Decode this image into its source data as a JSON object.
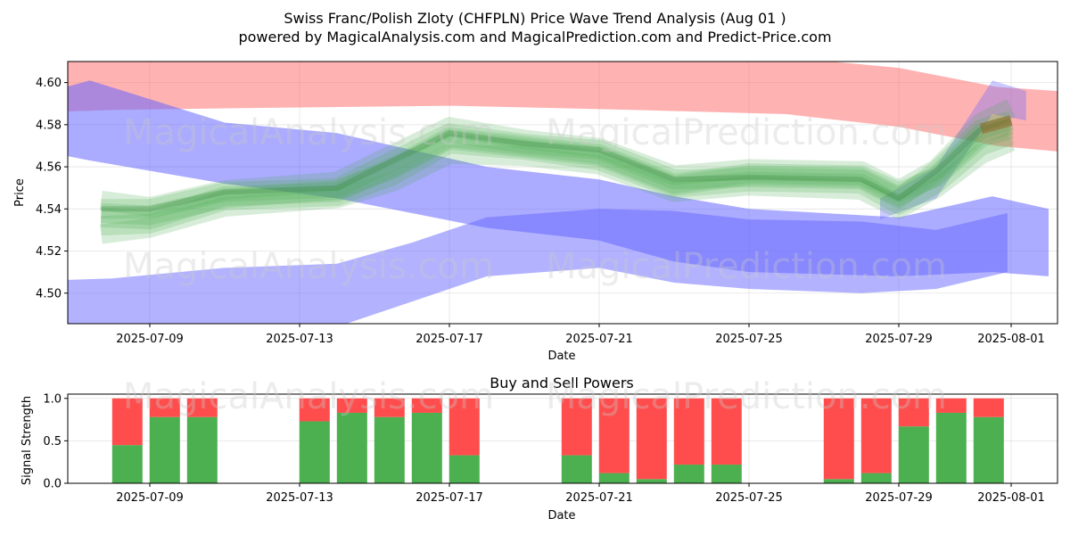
{
  "chart_data": [
    {
      "type": "area",
      "title": "Swiss Franc/Polish Zloty (CHFPLN) Price Wave Trend Analysis (Aug 01 )",
      "subtitle": "powered by MagicalAnalysis.com and MagicalPrediction.com and Predict-Price.com",
      "xlabel": "Date",
      "ylabel": "Price",
      "x_ticks": [
        "2025-07-09",
        "2025-07-13",
        "2025-07-17",
        "2025-07-21",
        "2025-07-25",
        "2025-07-29",
        "2025-08-01"
      ],
      "y_ticks": [
        "4.50",
        "4.52",
        "4.54",
        "4.56",
        "4.58",
        "4.60"
      ],
      "ylim": [
        4.4855,
        4.61
      ],
      "watermarks": [
        "MagicalAnalysis.com",
        "MagicalPrediction.com"
      ],
      "bands": [
        {
          "name": "red-upper-band",
          "color": "#ff6666",
          "opacity": 0.5,
          "upper": [
            [
              -4.5,
              4.618
            ],
            [
              -1,
              4.612
            ],
            [
              3,
              4.613
            ],
            [
              8,
              4.613
            ],
            [
              13,
              4.612
            ],
            [
              17,
              4.612
            ],
            [
              20,
              4.607
            ],
            [
              22.6,
              4.598
            ],
            [
              25,
              4.595
            ]
          ],
          "lower": [
            [
              -4.5,
              4.585
            ],
            [
              -1,
              4.587
            ],
            [
              3,
              4.588
            ],
            [
              8,
              4.589
            ],
            [
              13,
              4.587
            ],
            [
              17,
              4.585
            ],
            [
              20,
              4.579
            ],
            [
              22.6,
              4.57
            ],
            [
              25,
              4.566
            ]
          ]
        },
        {
          "name": "blue-falling-band",
          "color": "#6666ff",
          "opacity": 0.55,
          "upper": [
            [
              -4.5,
              4.587
            ],
            [
              -1.6,
              4.601
            ],
            [
              2,
              4.581
            ],
            [
              5,
              4.576
            ],
            [
              9,
              4.56
            ],
            [
              12,
              4.554
            ],
            [
              14,
              4.546
            ],
            [
              16,
              4.54
            ],
            [
              20,
              4.536
            ],
            [
              22.5,
              4.546
            ],
            [
              24,
              4.54
            ]
          ],
          "lower": [
            [
              -4.5,
              4.573
            ],
            [
              -1.6,
              4.563
            ],
            [
              2,
              4.552
            ],
            [
              5,
              4.545
            ],
            [
              9,
              4.531
            ],
            [
              12,
              4.525
            ],
            [
              14,
              4.515
            ],
            [
              16,
              4.51
            ],
            [
              20,
              4.508
            ],
            [
              22.5,
              4.51
            ],
            [
              24,
              4.508
            ]
          ]
        },
        {
          "name": "blue-rising-band",
          "color": "#6666ff",
          "opacity": 0.5,
          "upper": [
            [
              -4.5,
              4.505
            ],
            [
              -1,
              4.507
            ],
            [
              2,
              4.512
            ],
            [
              5,
              4.514
            ],
            [
              7,
              4.524
            ],
            [
              9,
              4.536
            ],
            [
              12,
              4.54
            ],
            [
              14,
              4.539
            ],
            [
              16,
              4.535
            ],
            [
              19,
              4.534
            ],
            [
              21,
              4.53
            ],
            [
              22.9,
              4.538
            ]
          ],
          "lower": [
            [
              -4.5,
              4.479
            ],
            [
              -1,
              4.478
            ],
            [
              2,
              4.48
            ],
            [
              5,
              4.484
            ],
            [
              7,
              4.496
            ],
            [
              9,
              4.508
            ],
            [
              12,
              4.512
            ],
            [
              14,
              4.505
            ],
            [
              16,
              4.502
            ],
            [
              19,
              4.5
            ],
            [
              21,
              4.502
            ],
            [
              22.9,
              4.51
            ]
          ]
        },
        {
          "name": "blue-rising-band-tail",
          "color": "#6666ff",
          "opacity": 0.35,
          "upper": [
            [
              19.5,
              4.545
            ],
            [
              21,
              4.56
            ],
            [
              22.5,
              4.601
            ],
            [
              23.4,
              4.596
            ]
          ],
          "lower": [
            [
              19.5,
              4.535
            ],
            [
              21,
              4.545
            ],
            [
              22.5,
              4.585
            ],
            [
              23.4,
              4.582
            ]
          ]
        }
      ],
      "green_waves": [
        [
          [
            -1.3,
            4.536
          ],
          [
            0,
            4.535
          ],
          [
            2,
            4.546
          ],
          [
            5,
            4.548
          ],
          [
            6.5,
            4.56
          ],
          [
            8,
            4.574
          ],
          [
            10,
            4.57
          ],
          [
            12,
            4.566
          ],
          [
            14,
            4.552
          ],
          [
            16,
            4.557
          ],
          [
            19,
            4.556
          ],
          [
            20,
            4.548
          ],
          [
            21,
            4.555
          ],
          [
            22.2,
            4.574
          ],
          [
            23,
            4.578
          ]
        ],
        [
          [
            -1.3,
            4.54
          ],
          [
            0,
            4.54
          ],
          [
            2,
            4.548
          ],
          [
            5,
            4.55
          ],
          [
            6.5,
            4.563
          ],
          [
            8,
            4.576
          ],
          [
            10,
            4.571
          ],
          [
            12,
            4.568
          ],
          [
            14,
            4.554
          ],
          [
            16,
            4.555
          ],
          [
            19,
            4.554
          ],
          [
            20,
            4.545
          ],
          [
            21,
            4.558
          ],
          [
            22.2,
            4.578
          ],
          [
            23,
            4.582
          ]
        ],
        [
          [
            -1.3,
            4.532
          ],
          [
            0,
            4.533
          ],
          [
            2,
            4.544
          ],
          [
            5,
            4.546
          ],
          [
            6.5,
            4.556
          ],
          [
            8,
            4.571
          ],
          [
            10,
            4.568
          ],
          [
            12,
            4.563
          ],
          [
            14,
            4.55
          ],
          [
            16,
            4.553
          ],
          [
            19,
            4.552
          ],
          [
            20,
            4.542
          ],
          [
            21,
            4.552
          ],
          [
            22.2,
            4.57
          ],
          [
            23,
            4.575
          ]
        ],
        [
          [
            -1.3,
            4.544
          ],
          [
            0,
            4.541
          ],
          [
            2,
            4.549
          ],
          [
            5,
            4.553
          ],
          [
            6.5,
            4.566
          ],
          [
            8,
            4.579
          ],
          [
            10,
            4.573
          ],
          [
            12,
            4.569
          ],
          [
            14,
            4.556
          ],
          [
            16,
            4.559
          ],
          [
            19,
            4.558
          ],
          [
            20,
            4.549
          ],
          [
            21,
            4.559
          ],
          [
            22.2,
            4.581
          ],
          [
            23,
            4.588
          ]
        ],
        [
          [
            -1.3,
            4.528
          ],
          [
            0,
            4.531
          ],
          [
            2,
            4.541
          ],
          [
            5,
            4.545
          ],
          [
            6.5,
            4.553
          ],
          [
            8,
            4.566
          ],
          [
            10,
            4.565
          ],
          [
            12,
            4.561
          ],
          [
            14,
            4.548
          ],
          [
            16,
            4.551
          ],
          [
            19,
            4.549
          ],
          [
            20,
            4.54
          ],
          [
            21,
            4.55
          ],
          [
            22.2,
            4.566
          ],
          [
            23,
            4.572
          ]
        ],
        [
          [
            -1.3,
            4.538
          ],
          [
            0,
            4.537
          ],
          [
            2,
            4.545
          ],
          [
            5,
            4.549
          ],
          [
            6.5,
            4.559
          ],
          [
            8,
            4.573
          ],
          [
            10,
            4.569
          ],
          [
            12,
            4.565
          ],
          [
            14,
            4.551
          ],
          [
            16,
            4.556
          ],
          [
            19,
            4.555
          ],
          [
            20,
            4.546
          ],
          [
            21,
            4.556
          ],
          [
            22.2,
            4.576
          ],
          [
            23,
            4.58
          ]
        ]
      ]
    },
    {
      "type": "bar",
      "title": "Buy and Sell Powers",
      "xlabel": "Date",
      "ylabel": "Signal Strength",
      "x_ticks": [
        "2025-07-09",
        "2025-07-13",
        "2025-07-17",
        "2025-07-21",
        "2025-07-25",
        "2025-07-29",
        "2025-08-01"
      ],
      "y_ticks": [
        "0.0",
        "0.5",
        "1.0"
      ],
      "ylim": [
        0,
        1.05
      ],
      "buy_color": "#4caf50",
      "sell_color": "#ff4d4d",
      "watermarks": [
        "MagicalAnalysis.com",
        "MagicalPrediction.com"
      ],
      "days": [
        -0.6,
        0.4,
        1.4,
        4.4,
        5.4,
        6.4,
        7.4,
        8.4,
        11.4,
        12.4,
        13.4,
        14.4,
        15.4,
        18.4,
        19.4,
        20.4,
        21.4,
        22.4
      ],
      "buy": [
        0.45,
        0.78,
        0.78,
        0.73,
        0.83,
        0.78,
        0.83,
        0.33,
        0.33,
        0.12,
        0.05,
        0.22,
        0.22,
        0.05,
        0.12,
        0.67,
        0.83,
        0.78
      ],
      "sell": [
        0.55,
        0.22,
        0.22,
        0.27,
        0.17,
        0.22,
        0.17,
        0.67,
        0.67,
        0.88,
        0.95,
        0.78,
        0.78,
        0.95,
        0.88,
        0.33,
        0.17,
        0.22
      ]
    }
  ]
}
